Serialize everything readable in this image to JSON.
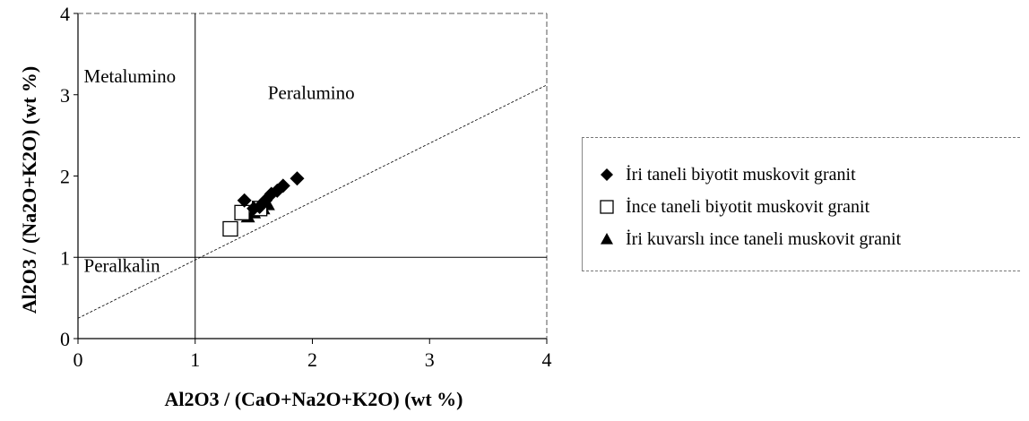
{
  "chart_data": {
    "type": "scatter",
    "xlabel": "Al2O3 / (CaO+Na2O+K2O) (wt %)",
    "ylabel": "Al2O3 / (Na2O+K2O) (wt %)",
    "xlim": [
      0,
      4
    ],
    "ylim": [
      0,
      4
    ],
    "x_ticks": [
      "0",
      "1",
      "2",
      "3",
      "4"
    ],
    "y_ticks": [
      "0",
      "1",
      "2",
      "3",
      "4"
    ],
    "grid": false,
    "legend_position": "right",
    "regions": [
      {
        "label": "Metalumino",
        "x": 0.05,
        "y": 3.15
      },
      {
        "label": "Peralumino",
        "x": 1.62,
        "y": 2.95
      },
      {
        "label": "Peralkalin",
        "x": 0.05,
        "y": 0.82
      }
    ],
    "reference_lines": [
      {
        "x": [
          1,
          1
        ],
        "y": [
          0,
          4
        ]
      },
      {
        "x": [
          0,
          4
        ],
        "y": [
          1,
          1
        ]
      },
      {
        "x": [
          0,
          4
        ],
        "y": [
          0.25,
          3.12
        ]
      }
    ],
    "series": [
      {
        "name": "İri taneli biyotit muskovit granit",
        "marker": "diamond",
        "points": [
          [
            1.42,
            1.7
          ],
          [
            1.5,
            1.6
          ],
          [
            1.55,
            1.62
          ],
          [
            1.6,
            1.7
          ],
          [
            1.65,
            1.78
          ],
          [
            1.7,
            1.82
          ],
          [
            1.75,
            1.88
          ],
          [
            1.87,
            1.97
          ]
        ]
      },
      {
        "name": "İnce taneli biyotit muskovit granit",
        "marker": "square",
        "points": [
          [
            1.3,
            1.35
          ],
          [
            1.4,
            1.55
          ],
          [
            1.55,
            1.6
          ]
        ]
      },
      {
        "name": "İri kuvarslı ince taneli muskovit granit",
        "marker": "triangle",
        "points": [
          [
            1.45,
            1.5
          ],
          [
            1.5,
            1.55
          ],
          [
            1.58,
            1.6
          ],
          [
            1.62,
            1.65
          ]
        ]
      }
    ]
  }
}
